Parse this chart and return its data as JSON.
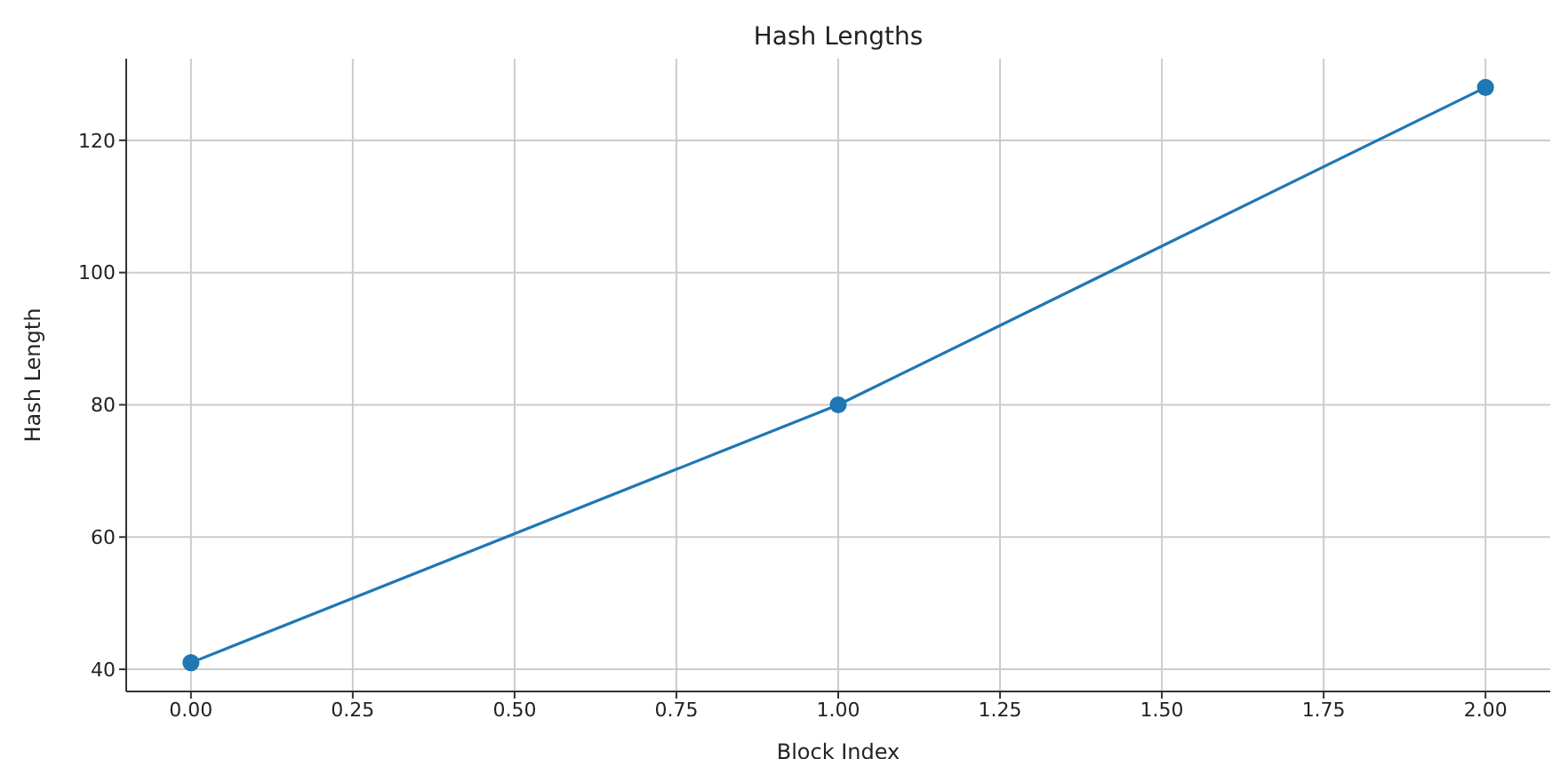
{
  "chart_data": {
    "type": "line",
    "title": "Hash Lengths",
    "xlabel": "Block Index",
    "ylabel": "Hash Length",
    "x": [
      0,
      1,
      2
    ],
    "series": [
      {
        "color": "#1f77b4",
        "values": [
          41,
          80,
          128
        ]
      }
    ],
    "xlim": [
      -0.1,
      2.1
    ],
    "xticks": [
      {
        "value": 0,
        "label": "0.00"
      },
      {
        "value": 0.25,
        "label": "0.25"
      },
      {
        "value": 0.5,
        "label": "0.50"
      },
      {
        "value": 0.75,
        "label": "0.75"
      },
      {
        "value": 1,
        "label": "1.00"
      },
      {
        "value": 1.25,
        "label": "1.25"
      },
      {
        "value": 1.5,
        "label": "1.50"
      },
      {
        "value": 1.75,
        "label": "1.75"
      },
      {
        "value": 2,
        "label": "2.00"
      }
    ],
    "ylim": [
      36.65,
      132.35
    ],
    "yticks": [
      40,
      60,
      80,
      100,
      120
    ],
    "grid": true,
    "marker": "circle",
    "line_style": "solid"
  }
}
